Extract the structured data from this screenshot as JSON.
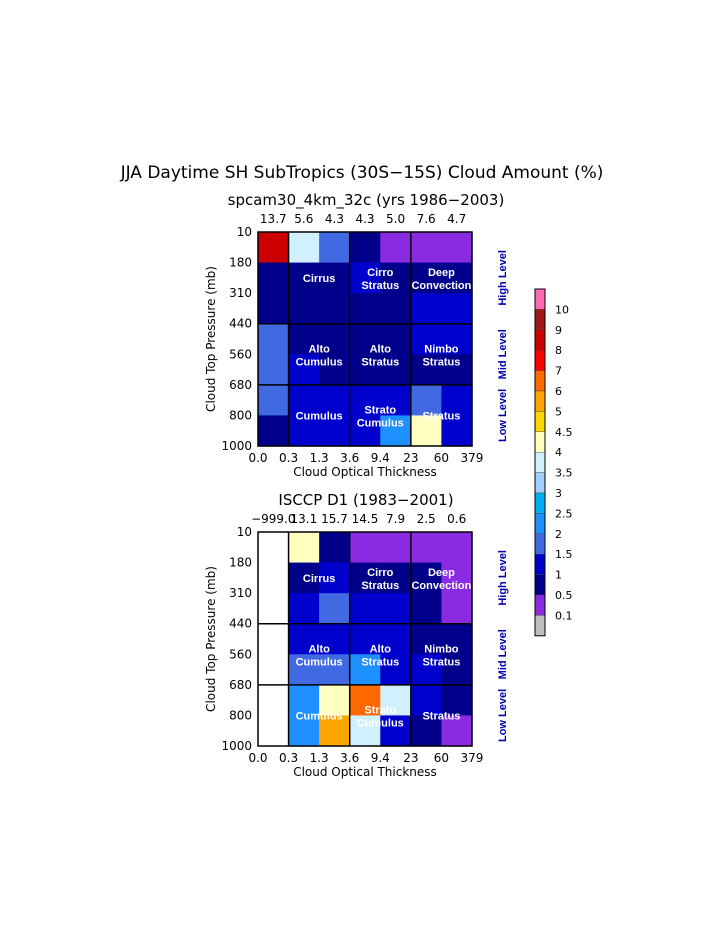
{
  "title": "JJA Daytime SH SubTropics (30S−15S) Cloud Amount (%)",
  "x_tick_labels": [
    "0.0",
    "0.3",
    "1.3",
    "3.6",
    "9.4",
    "23",
    "60",
    "379"
  ],
  "y_tick_labels": [
    "10",
    "180",
    "310",
    "440",
    "560",
    "680",
    "800",
    "1000"
  ],
  "xlabel": "Cloud Optical Thickness",
  "ylabel": "Cloud Top Pressure (mb)",
  "level_labels": [
    "High Level",
    "Mid Level",
    "Low Level"
  ],
  "cloud_type_labels": {
    "cirrus": "Cirrus",
    "cirro_stratus": [
      "Cirro",
      "Stratus"
    ],
    "deep_convection": [
      "Deep",
      "Convection"
    ],
    "alto_cumulus": [
      "Alto",
      "Cumulus"
    ],
    "alto_stratus": [
      "Alto",
      "Stratus"
    ],
    "nimbo_stratus": [
      "Nimbo",
      "Stratus"
    ],
    "cumulus": "Cumulus",
    "strato_cumulus": [
      "Strato",
      "Cumulus"
    ],
    "stratus": "Stratus"
  },
  "colorbar": {
    "labels": [
      "10",
      "9",
      "8",
      "7",
      "6",
      "5",
      "4.5",
      "4",
      "3.5",
      "3",
      "2.5",
      "2",
      "1.5",
      "1",
      "0.5",
      "0.1"
    ],
    "colors": [
      "#ff69b4",
      "#a01818",
      "#cc0000",
      "#ff0000",
      "#ff6a00",
      "#ffa500",
      "#ffd500",
      "#ffffc0",
      "#d0f0ff",
      "#a0d0ff",
      "#00b0f0",
      "#1e90ff",
      "#4169e1",
      "#0000cd",
      "#00008b",
      "#8a2be2",
      "#bebebe"
    ]
  },
  "chart_data": [
    {
      "type": "heatmap",
      "title": "spcam30_4km_32c (yrs 1986−2003)",
      "column_totals": [
        "13.7",
        "5.6",
        "4.3",
        "4.3",
        "5.0",
        "7.6",
        "4.7"
      ],
      "rows_top_to_bottom": [
        [
          8,
          3.5,
          1.5,
          0.5,
          0.1,
          0.1,
          0.1
        ],
        [
          0.5,
          0.5,
          0.5,
          1,
          0.5,
          0.5,
          0.5
        ],
        [
          0.5,
          0.5,
          0.5,
          0.5,
          0.5,
          1,
          1
        ],
        [
          1.5,
          0.5,
          0.5,
          0.5,
          0.5,
          1,
          1
        ],
        [
          1.5,
          1,
          0.5,
          0.5,
          0.5,
          0.5,
          0.5
        ],
        [
          1.5,
          1,
          1,
          1,
          1,
          1.5,
          1
        ],
        [
          0.5,
          1,
          1,
          1,
          2,
          4,
          1
        ]
      ]
    },
    {
      "type": "heatmap",
      "title": "ISCCP D1 (1983−2001)",
      "column_totals": [
        "−999.0",
        "13.1",
        "15.7",
        "14.5",
        "7.9",
        "2.5",
        "0.6"
      ],
      "rows_top_to_bottom": [
        [
          null,
          4,
          0.5,
          0.1,
          0.1,
          0.1,
          0.1
        ],
        [
          null,
          0.5,
          1,
          0.5,
          0.5,
          0.5,
          0.1
        ],
        [
          null,
          1,
          1.5,
          1,
          1,
          0.5,
          0.1
        ],
        [
          null,
          1,
          1,
          1,
          1,
          0.5,
          0.5
        ],
        [
          null,
          1.5,
          1.5,
          2,
          1,
          1,
          0.5
        ],
        [
          null,
          2,
          4,
          6,
          3.5,
          1,
          0.5
        ],
        [
          null,
          2,
          5,
          3.5,
          1,
          0.5,
          0.1
        ]
      ]
    }
  ]
}
